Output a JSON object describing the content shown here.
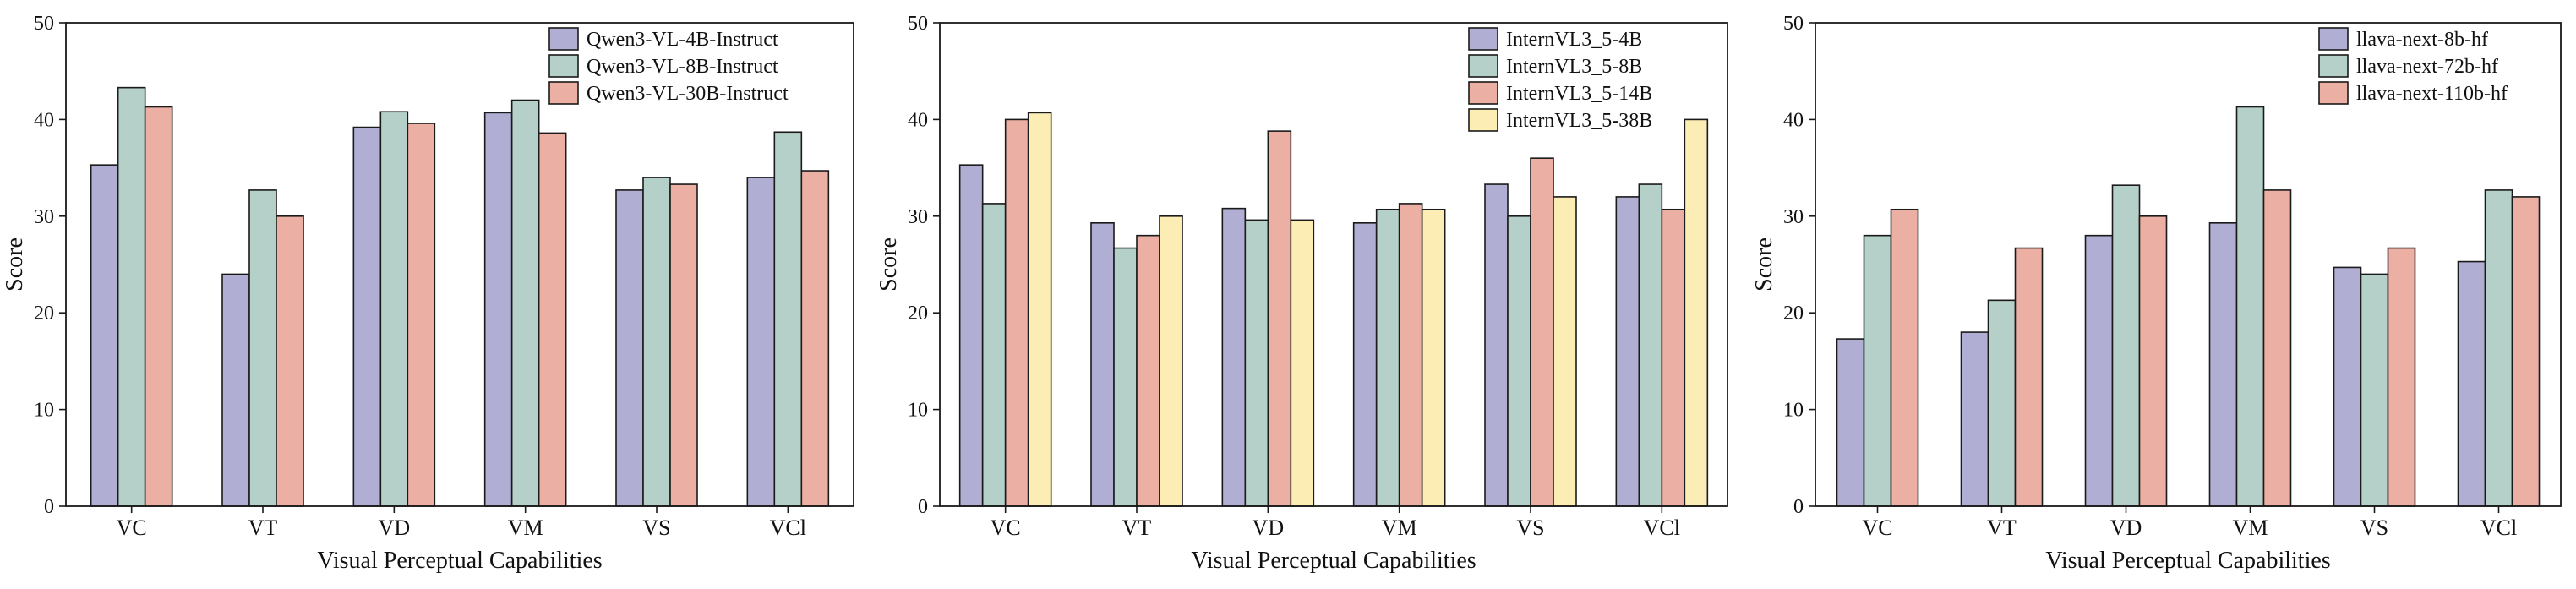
{
  "colors": {
    "purple": "#b1aed3",
    "teal": "#b5d0c8",
    "salmon": "#ebafa3",
    "yellow": "#fcedb5",
    "edge": "#1a1a1a"
  },
  "chart_data": [
    {
      "type": "bar",
      "title": "",
      "xlabel": "Visual Perceptual Capabilities",
      "ylabel": "Score",
      "ylim": [
        0,
        50
      ],
      "yticks": [
        0,
        10,
        20,
        30,
        40,
        50
      ],
      "legend_position": "top-right",
      "categories": [
        "VC",
        "VT",
        "VD",
        "VM",
        "VS",
        "VCl"
      ],
      "series": [
        {
          "name": "Qwen3-VL-4B-Instruct",
          "color": "#b1aed3",
          "values": [
            35.3,
            24.0,
            39.2,
            40.7,
            32.7,
            34.0
          ]
        },
        {
          "name": "Qwen3-VL-8B-Instruct",
          "color": "#b5d0c8",
          "values": [
            43.3,
            32.7,
            40.8,
            42.0,
            34.0,
            38.7
          ]
        },
        {
          "name": "Qwen3-VL-30B-Instruct",
          "color": "#ebafa3",
          "values": [
            41.3,
            30.0,
            39.6,
            38.6,
            33.3,
            34.7
          ]
        }
      ]
    },
    {
      "type": "bar",
      "title": "",
      "xlabel": "Visual Perceptual Capabilities",
      "ylabel": "Score",
      "ylim": [
        0,
        50
      ],
      "yticks": [
        0,
        10,
        20,
        30,
        40,
        50
      ],
      "legend_position": "top-right",
      "categories": [
        "VC",
        "VT",
        "VD",
        "VM",
        "VS",
        "VCl"
      ],
      "series": [
        {
          "name": "InternVL3_5-4B",
          "color": "#b1aed3",
          "values": [
            35.3,
            29.3,
            30.8,
            29.3,
            33.3,
            32.0
          ]
        },
        {
          "name": "InternVL3_5-8B",
          "color": "#b5d0c8",
          "values": [
            31.3,
            26.7,
            29.6,
            30.7,
            30.0,
            33.3
          ]
        },
        {
          "name": "InternVL3_5-14B",
          "color": "#ebafa3",
          "values": [
            40.0,
            28.0,
            38.8,
            31.3,
            36.0,
            30.7
          ]
        },
        {
          "name": "InternVL3_5-38B",
          "color": "#fcedb5",
          "values": [
            40.7,
            30.0,
            29.6,
            30.7,
            32.0,
            40.0
          ]
        }
      ]
    },
    {
      "type": "bar",
      "title": "",
      "xlabel": "Visual Perceptual Capabilities",
      "ylabel": "Score",
      "ylim": [
        0,
        50
      ],
      "yticks": [
        0,
        10,
        20,
        30,
        40,
        50
      ],
      "legend_position": "top-right",
      "categories": [
        "VC",
        "VT",
        "VD",
        "VM",
        "VS",
        "VCl"
      ],
      "series": [
        {
          "name": "llava-next-8b-hf",
          "color": "#b1aed3",
          "values": [
            17.3,
            18.0,
            28.0,
            29.3,
            24.7,
            25.3
          ]
        },
        {
          "name": "llava-next-72b-hf",
          "color": "#b5d0c8",
          "values": [
            28.0,
            21.3,
            33.2,
            41.3,
            24.0,
            32.7
          ]
        },
        {
          "name": "llava-next-110b-hf",
          "color": "#ebafa3",
          "values": [
            30.7,
            26.7,
            30.0,
            32.7,
            26.7,
            32.0
          ]
        }
      ]
    }
  ]
}
